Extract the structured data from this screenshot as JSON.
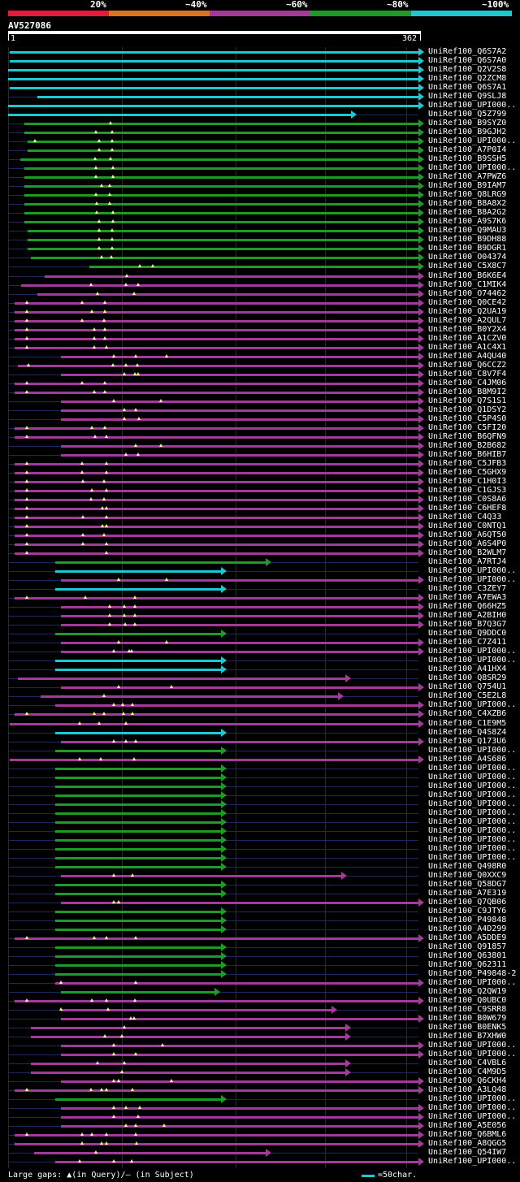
{
  "legend": {
    "items": [
      {
        "label": "20%",
        "color": "#e8193c"
      },
      {
        "label": "~40%",
        "color": "#e0721c"
      },
      {
        "label": "~60%",
        "color": "#a23a9a"
      },
      {
        "label": "~80%",
        "color": "#1f9a2a"
      },
      {
        "label": "~100%",
        "color": "#1ec8d0"
      }
    ]
  },
  "query": {
    "name": "AV527086",
    "start": "1",
    "end": "362"
  },
  "colors": {
    "cyan": "#1ec8d0",
    "green": "#1f9a2a",
    "magenta": "#a23a9a",
    "background": "#000000",
    "gap_marker": "#ffff99"
  },
  "hits": [
    {
      "name": "UniRef100_Q6S7A2",
      "c": "cyan",
      "s": 12,
      "e": 515,
      "g": []
    },
    {
      "name": "UniRef100_Q6S7A0",
      "c": "cyan",
      "s": 12,
      "e": 515,
      "g": []
    },
    {
      "name": "UniRef100_Q2V2S8",
      "c": "cyan",
      "s": 10,
      "e": 515,
      "g": []
    },
    {
      "name": "UniRef100_Q2ZCM8",
      "c": "cyan",
      "s": 10,
      "e": 515,
      "g": []
    },
    {
      "name": "UniRef100_Q6S7A1",
      "c": "cyan",
      "s": 12,
      "e": 515,
      "g": []
    },
    {
      "name": "UniRef100_Q9SLJ8",
      "c": "cyan",
      "s": 46,
      "e": 515,
      "g": []
    },
    {
      "name": "UniRef100_UPI000..",
      "c": "cyan",
      "s": 10,
      "e": 515,
      "g": []
    },
    {
      "name": "UniRef100_Q5Z799",
      "c": "cyan",
      "s": 10,
      "e": 432,
      "g": []
    },
    {
      "name": "UniRef100_B9SYZ0",
      "c": "green",
      "s": 30,
      "e": 515,
      "g": [
        136
      ]
    },
    {
      "name": "UniRef100_B9GJH2",
      "c": "green",
      "s": 30,
      "e": 515,
      "g": [
        118,
        138
      ]
    },
    {
      "name": "UniRef100_UPI000..",
      "c": "green",
      "s": 34,
      "e": 515,
      "g": [
        43,
        122,
        138
      ]
    },
    {
      "name": "UniRef100_A7P0I4",
      "c": "green",
      "s": 34,
      "e": 515,
      "g": [
        122,
        138
      ]
    },
    {
      "name": "UniRef100_B9SSH5",
      "c": "green",
      "s": 25,
      "e": 515,
      "g": [
        117,
        136
      ]
    },
    {
      "name": "UniRef100_UPI000..",
      "c": "green",
      "s": 30,
      "e": 515,
      "g": [
        118,
        139
      ]
    },
    {
      "name": "UniRef100_A7PWZ6",
      "c": "green",
      "s": 30,
      "e": 515,
      "g": [
        118,
        139
      ]
    },
    {
      "name": "UniRef100_B9IAM7",
      "c": "green",
      "s": 30,
      "e": 515,
      "g": [
        125,
        135
      ]
    },
    {
      "name": "UniRef100_Q8LRG9",
      "c": "green",
      "s": 30,
      "e": 515,
      "g": [
        118,
        135
      ]
    },
    {
      "name": "UniRef100_B8A8X2",
      "c": "green",
      "s": 30,
      "e": 515,
      "g": [
        119,
        135
      ]
    },
    {
      "name": "UniRef100_B8A2G2",
      "c": "green",
      "s": 30,
      "e": 515,
      "g": [
        119,
        139
      ]
    },
    {
      "name": "UniRef100_A9S7K6",
      "c": "green",
      "s": 30,
      "e": 515,
      "g": [
        122,
        139
      ]
    },
    {
      "name": "UniRef100_Q9MAU3",
      "c": "green",
      "s": 34,
      "e": 515,
      "g": [
        122,
        138
      ]
    },
    {
      "name": "UniRef100_B9DH88",
      "c": "green",
      "s": 34,
      "e": 515,
      "g": [
        122,
        138
      ]
    },
    {
      "name": "UniRef100_B9DGR1",
      "c": "green",
      "s": 34,
      "e": 515,
      "g": [
        122,
        138
      ]
    },
    {
      "name": "UniRef100_O04374",
      "c": "green",
      "s": 38,
      "e": 515,
      "g": [
        125,
        137
      ]
    },
    {
      "name": "UniRef100_C5X8C7",
      "c": "green",
      "s": 110,
      "e": 515,
      "g": [
        172,
        188
      ]
    },
    {
      "name": "UniRef100_B6K6E4",
      "c": "magenta",
      "s": 55,
      "e": 515,
      "g": [
        156
      ]
    },
    {
      "name": "UniRef100_C1MIK4",
      "c": "magenta",
      "s": 26,
      "e": 515,
      "g": [
        112,
        155,
        170
      ]
    },
    {
      "name": "UniRef100_O74462",
      "c": "magenta",
      "s": 46,
      "e": 515,
      "g": [
        120,
        165
      ]
    },
    {
      "name": "UniRef100_Q0CE42",
      "c": "magenta",
      "s": 18,
      "e": 515,
      "g": [
        33,
        101,
        129
      ]
    },
    {
      "name": "UniRef100_Q2UA19",
      "c": "magenta",
      "s": 18,
      "e": 515,
      "g": [
        33,
        113,
        129
      ]
    },
    {
      "name": "UniRef100_A2QUL7",
      "c": "magenta",
      "s": 18,
      "e": 515,
      "g": [
        33,
        101,
        128
      ]
    },
    {
      "name": "UniRef100_B0Y2X4",
      "c": "magenta",
      "s": 18,
      "e": 515,
      "g": [
        33,
        116,
        129
      ]
    },
    {
      "name": "UniRef100_A1CZV0",
      "c": "magenta",
      "s": 18,
      "e": 515,
      "g": [
        33,
        116,
        129
      ]
    },
    {
      "name": "UniRef100_A1C4X1",
      "c": "magenta",
      "s": 18,
      "e": 515,
      "g": [
        33,
        116,
        131
      ]
    },
    {
      "name": "UniRef100_A4QU40",
      "c": "magenta",
      "s": 75,
      "e": 515,
      "g": [
        140,
        167,
        205
      ]
    },
    {
      "name": "UniRef100_Q6CCZ2",
      "c": "magenta",
      "s": 22,
      "e": 515,
      "g": [
        35,
        139,
        155,
        169
      ]
    },
    {
      "name": "UniRef100_C8V7F4",
      "c": "magenta",
      "s": 75,
      "e": 515,
      "g": [
        153,
        166,
        170
      ]
    },
    {
      "name": "UniRef100_C4JM06",
      "c": "magenta",
      "s": 18,
      "e": 515,
      "g": [
        33,
        101,
        129
      ]
    },
    {
      "name": "UniRef100_B8M9I2",
      "c": "magenta",
      "s": 18,
      "e": 515,
      "g": [
        33,
        116,
        129
      ]
    },
    {
      "name": "UniRef100_Q7S1S1",
      "c": "magenta",
      "s": 75,
      "e": 515,
      "g": [
        140,
        198
      ]
    },
    {
      "name": "UniRef100_Q1DSY2",
      "c": "magenta",
      "s": 75,
      "e": 515,
      "g": [
        153,
        167
      ]
    },
    {
      "name": "UniRef100_C5P4S0",
      "c": "magenta",
      "s": 75,
      "e": 515,
      "g": [
        153,
        171
      ]
    },
    {
      "name": "UniRef100_C5FI20",
      "c": "magenta",
      "s": 18,
      "e": 515,
      "g": [
        33,
        113,
        129
      ]
    },
    {
      "name": "UniRef100_B6QFN9",
      "c": "magenta",
      "s": 18,
      "e": 515,
      "g": [
        33,
        117,
        131
      ]
    },
    {
      "name": "UniRef100_B2B682",
      "c": "magenta",
      "s": 75,
      "e": 515,
      "g": [
        167,
        198
      ]
    },
    {
      "name": "UniRef100_B6HIB7",
      "c": "magenta",
      "s": 75,
      "e": 515,
      "g": [
        155,
        170
      ]
    },
    {
      "name": "UniRef100_C5JFB3",
      "c": "magenta",
      "s": 18,
      "e": 515,
      "g": [
        33,
        101,
        131
      ]
    },
    {
      "name": "UniRef100_C5GHX9",
      "c": "magenta",
      "s": 18,
      "e": 515,
      "g": [
        33,
        101,
        131
      ]
    },
    {
      "name": "UniRef100_C1H0I3",
      "c": "magenta",
      "s": 18,
      "e": 515,
      "g": [
        33,
        102,
        128
      ]
    },
    {
      "name": "UniRef100_C1GJS3",
      "c": "magenta",
      "s": 18,
      "e": 515,
      "g": [
        33,
        113,
        131
      ]
    },
    {
      "name": "UniRef100_C0S8A6",
      "c": "magenta",
      "s": 18,
      "e": 515,
      "g": [
        33,
        112,
        128
      ]
    },
    {
      "name": "UniRef100_C6HEF8",
      "c": "magenta",
      "s": 18,
      "e": 515,
      "g": [
        33,
        126,
        131
      ]
    },
    {
      "name": "UniRef100_C4Q33",
      "c": "magenta",
      "s": 18,
      "e": 515,
      "g": [
        33,
        102,
        131
      ]
    },
    {
      "name": "UniRef100_C0NTQ1",
      "c": "magenta",
      "s": 18,
      "e": 515,
      "g": [
        33,
        126,
        131
      ]
    },
    {
      "name": "UniRef100_A6QT50",
      "c": "magenta",
      "s": 18,
      "e": 515,
      "g": [
        33,
        102,
        128
      ]
    },
    {
      "name": "UniRef100_A6S4P0",
      "c": "magenta",
      "s": 18,
      "e": 515,
      "g": [
        33,
        102,
        131
      ]
    },
    {
      "name": "UniRef100_B2WLM7",
      "c": "magenta",
      "s": 18,
      "e": 515,
      "g": [
        33,
        131
      ]
    },
    {
      "name": "UniRef100_A7RTJ4",
      "c": "green",
      "s": 68,
      "e": 327,
      "g": []
    },
    {
      "name": "UniRef100_UPI000..",
      "c": "cyan",
      "s": 68,
      "e": 272,
      "g": []
    },
    {
      "name": "UniRef100_UPI000..",
      "c": "magenta",
      "s": 75,
      "e": 515,
      "g": [
        146,
        205
      ]
    },
    {
      "name": "UniRef100_C3ZEY7",
      "c": "cyan",
      "s": 68,
      "e": 272,
      "g": []
    },
    {
      "name": "UniRef100_A7EWA3",
      "c": "magenta",
      "s": 18,
      "e": 515,
      "g": [
        33,
        105,
        166
      ]
    },
    {
      "name": "UniRef100_Q66HZ5",
      "c": "magenta",
      "s": 75,
      "e": 515,
      "g": [
        135,
        153,
        166
      ]
    },
    {
      "name": "UniRef100_A2BIH0",
      "c": "magenta",
      "s": 75,
      "e": 515,
      "g": [
        135,
        153,
        166
      ]
    },
    {
      "name": "UniRef100_B7Q3G7",
      "c": "magenta",
      "s": 75,
      "e": 515,
      "g": [
        135,
        154,
        166
      ]
    },
    {
      "name": "UniRef100_Q9DDC0",
      "c": "green",
      "s": 68,
      "e": 272,
      "g": []
    },
    {
      "name": "UniRef100_C7Z411",
      "c": "magenta",
      "s": 75,
      "e": 515,
      "g": [
        146,
        205
      ]
    },
    {
      "name": "UniRef100_UPI000..",
      "c": "magenta",
      "s": 75,
      "e": 515,
      "g": [
        140,
        159,
        162
      ]
    },
    {
      "name": "UniRef100_UPI000..",
      "c": "cyan",
      "s": 68,
      "e": 272,
      "g": []
    },
    {
      "name": "UniRef100_A41HX4",
      "c": "cyan",
      "s": 68,
      "e": 272,
      "g": []
    },
    {
      "name": "UniRef100_Q8SR29",
      "c": "magenta",
      "s": 22,
      "e": 425,
      "g": []
    },
    {
      "name": "UniRef100_Q754U1",
      "c": "magenta",
      "s": 75,
      "e": 515,
      "g": [
        146,
        211
      ]
    },
    {
      "name": "UniRef100_C5E2L8",
      "c": "magenta",
      "s": 50,
      "e": 416,
      "g": [
        128
      ]
    },
    {
      "name": "UniRef100_UPI000..",
      "c": "magenta",
      "s": 68,
      "e": 515,
      "g": [
        140,
        151,
        163
      ]
    },
    {
      "name": "UniRef100_C4XZB6",
      "c": "magenta",
      "s": 18,
      "e": 515,
      "g": [
        33,
        116,
        128,
        152,
        163
      ]
    },
    {
      "name": "UniRef100_C1E9M5",
      "c": "magenta",
      "s": 12,
      "e": 515,
      "g": [
        98,
        122,
        155
      ]
    },
    {
      "name": "UniRef100_Q4S8Z4",
      "c": "cyan",
      "s": 68,
      "e": 272,
      "g": []
    },
    {
      "name": "UniRef100_Q173U6",
      "c": "magenta",
      "s": 75,
      "e": 515,
      "g": [
        140,
        155,
        167
      ]
    },
    {
      "name": "UniRef100_UPI000..",
      "c": "green",
      "s": 68,
      "e": 272,
      "g": []
    },
    {
      "name": "UniRef100_A4S686",
      "c": "magenta",
      "s": 12,
      "e": 515,
      "g": [
        98,
        124,
        165
      ]
    },
    {
      "name": "UniRef100_UPI000..",
      "c": "green",
      "s": 68,
      "e": 272,
      "g": []
    },
    {
      "name": "UniRef100_UPI000..",
      "c": "green",
      "s": 68,
      "e": 272,
      "g": []
    },
    {
      "name": "UniRef100_UPI000..",
      "c": "green",
      "s": 68,
      "e": 272,
      "g": []
    },
    {
      "name": "UniRef100_UPI000..",
      "c": "green",
      "s": 68,
      "e": 272,
      "g": []
    },
    {
      "name": "UniRef100_UPI000..",
      "c": "green",
      "s": 68,
      "e": 272,
      "g": []
    },
    {
      "name": "UniRef100_UPI000..",
      "c": "green",
      "s": 68,
      "e": 272,
      "g": []
    },
    {
      "name": "UniRef100_UPI000..",
      "c": "green",
      "s": 68,
      "e": 272,
      "g": []
    },
    {
      "name": "UniRef100_UPI000..",
      "c": "green",
      "s": 68,
      "e": 272,
      "g": []
    },
    {
      "name": "UniRef100_UPI000..",
      "c": "green",
      "s": 68,
      "e": 272,
      "g": []
    },
    {
      "name": "UniRef100_UPI000..",
      "c": "green",
      "s": 68,
      "e": 272,
      "g": []
    },
    {
      "name": "UniRef100_UPI000..",
      "c": "green",
      "s": 68,
      "e": 272,
      "g": []
    },
    {
      "name": "UniRef100_Q498R0",
      "c": "green",
      "s": 68,
      "e": 272,
      "g": []
    },
    {
      "name": "UniRef100_Q0XXC9",
      "c": "magenta",
      "s": 75,
      "e": 420,
      "g": [
        140,
        163
      ]
    },
    {
      "name": "UniRef100_Q58DG7",
      "c": "green",
      "s": 68,
      "e": 272,
      "g": []
    },
    {
      "name": "UniRef100_A7E319",
      "c": "green",
      "s": 68,
      "e": 272,
      "g": []
    },
    {
      "name": "UniRef100_Q7QB06",
      "c": "magenta",
      "s": 75,
      "e": 515,
      "g": [
        140,
        146
      ]
    },
    {
      "name": "UniRef100_C9JTY6",
      "c": "green",
      "s": 68,
      "e": 272,
      "g": []
    },
    {
      "name": "UniRef100_P49848",
      "c": "green",
      "s": 68,
      "e": 272,
      "g": []
    },
    {
      "name": "UniRef100_A4D299",
      "c": "green",
      "s": 68,
      "e": 272,
      "g": []
    },
    {
      "name": "UniRef100_A5DDE9",
      "c": "magenta",
      "s": 18,
      "e": 515,
      "g": [
        33,
        116,
        131,
        167
      ]
    },
    {
      "name": "UniRef100_Q91857",
      "c": "green",
      "s": 68,
      "e": 272,
      "g": []
    },
    {
      "name": "UniRef100_Q63801",
      "c": "green",
      "s": 68,
      "e": 272,
      "g": []
    },
    {
      "name": "UniRef100_Q62311",
      "c": "green",
      "s": 68,
      "e": 272,
      "g": []
    },
    {
      "name": "UniRef100_P49848-2",
      "c": "green",
      "s": 68,
      "e": 272,
      "g": []
    },
    {
      "name": "UniRef100_UPI000..",
      "c": "magenta",
      "s": 68,
      "e": 515,
      "g": [
        75,
        167
      ]
    },
    {
      "name": "UniRef100_Q2QW19",
      "c": "green",
      "s": 75,
      "e": 264,
      "g": []
    },
    {
      "name": "UniRef100_Q0UBC0",
      "c": "magenta",
      "s": 18,
      "e": 515,
      "g": [
        33,
        113,
        131,
        166
      ]
    },
    {
      "name": "UniRef100_C9SRR8",
      "c": "magenta",
      "s": 75,
      "e": 408,
      "g": [
        75,
        133
      ]
    },
    {
      "name": "UniRef100_B0W679",
      "c": "magenta",
      "s": 75,
      "e": 515,
      "g": [
        161,
        165
      ]
    },
    {
      "name": "UniRef100_B0ENK5",
      "c": "magenta",
      "s": 38,
      "e": 425,
      "g": [
        153
      ]
    },
    {
      "name": "UniRef100_B7XHW0",
      "c": "magenta",
      "s": 38,
      "e": 425,
      "g": [
        129,
        150
      ]
    },
    {
      "name": "UniRef100_UPI000..",
      "c": "magenta",
      "s": 75,
      "e": 515,
      "g": [
        140,
        200
      ]
    },
    {
      "name": "UniRef100_UPI000..",
      "c": "magenta",
      "s": 75,
      "e": 515,
      "g": [
        140,
        167
      ]
    },
    {
      "name": "UniRef100_C4VBL6",
      "c": "magenta",
      "s": 38,
      "e": 425,
      "g": [
        120,
        153
      ]
    },
    {
      "name": "UniRef100_C4M9D5",
      "c": "magenta",
      "s": 38,
      "e": 425,
      "g": [
        150
      ]
    },
    {
      "name": "UniRef100_Q6CKH4",
      "c": "magenta",
      "s": 75,
      "e": 515,
      "g": [
        140,
        146,
        211
      ]
    },
    {
      "name": "UniRef100_A3LQ48",
      "c": "magenta",
      "s": 18,
      "e": 515,
      "g": [
        33,
        112,
        125,
        131,
        163
      ]
    },
    {
      "name": "UniRef100_UPI000..",
      "c": "green",
      "s": 68,
      "e": 272,
      "g": []
    },
    {
      "name": "UniRef100_UPI000..",
      "c": "magenta",
      "s": 75,
      "e": 515,
      "g": [
        140,
        155,
        172
      ]
    },
    {
      "name": "UniRef100_UPI000..",
      "c": "magenta",
      "s": 75,
      "e": 515,
      "g": [
        140,
        170
      ]
    },
    {
      "name": "UniRef100_A5E056",
      "c": "magenta",
      "s": 75,
      "e": 515,
      "g": [
        155,
        167,
        202
      ]
    },
    {
      "name": "UniRef100_Q6BML6",
      "c": "magenta",
      "s": 18,
      "e": 515,
      "g": [
        33,
        101,
        113,
        131,
        167
      ]
    },
    {
      "name": "UniRef100_A8QGG5",
      "c": "magenta",
      "s": 18,
      "e": 515,
      "g": [
        101,
        125,
        131,
        168
      ]
    },
    {
      "name": "UniRef100_Q54IW7",
      "c": "magenta",
      "s": 42,
      "e": 327,
      "g": [
        118
      ]
    },
    {
      "name": "UniRef100_UPI000..",
      "c": "magenta",
      "s": 68,
      "e": 515,
      "g": [
        98,
        140,
        162
      ]
    }
  ],
  "footer": {
    "gap_legend": "Large gaps: ▲(in Query)/– (in Subject)",
    "scale_label": "=50char."
  }
}
